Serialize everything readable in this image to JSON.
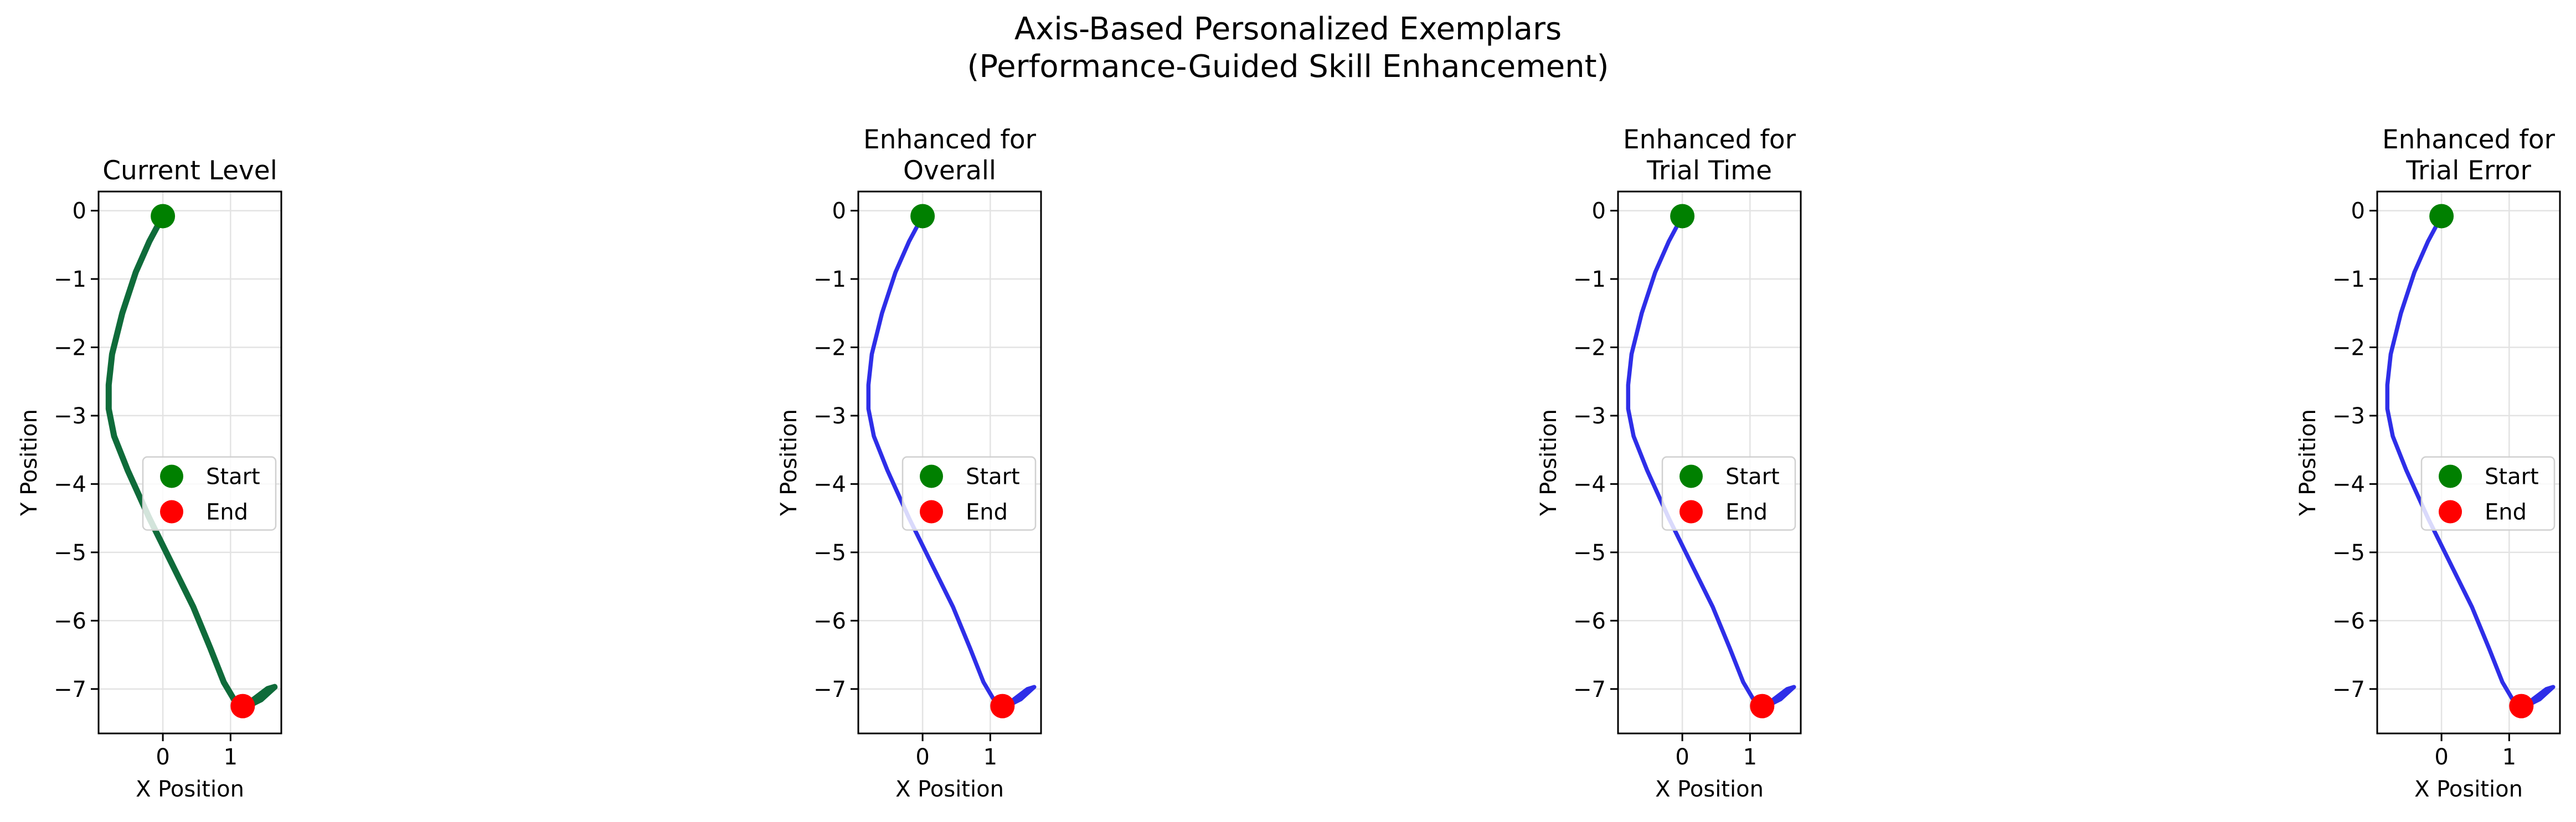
{
  "figure": {
    "title_line1": "Axis-Based Personalized Exemplars",
    "title_line2": "(Performance-Guided Skill Enhancement)"
  },
  "chart_data": [
    {
      "type": "line",
      "title_lines": [
        "Current Level"
      ],
      "xlabel": "X Position",
      "ylabel": "Y Position",
      "xlim": [
        -0.95,
        1.75
      ],
      "ylim": [
        -7.65,
        0.28
      ],
      "xticks": [
        0,
        1
      ],
      "yticks": [
        0,
        -1,
        -2,
        -3,
        -4,
        -5,
        -6,
        -7
      ],
      "grid": true,
      "line_color": "#0f6b3a",
      "legend": {
        "placement": "center-right",
        "entries": [
          "Start",
          "End"
        ]
      },
      "start_color": "#008000",
      "end_color": "#ff0000",
      "start": [
        0.0,
        -0.08
      ],
      "end": [
        1.18,
        -7.25
      ],
      "path": [
        [
          0.0,
          -0.08
        ],
        [
          -0.2,
          -0.45
        ],
        [
          -0.4,
          -0.9
        ],
        [
          -0.6,
          -1.5
        ],
        [
          -0.75,
          -2.1
        ],
        [
          -0.8,
          -2.55
        ],
        [
          -0.8,
          -2.9
        ],
        [
          -0.72,
          -3.3
        ],
        [
          -0.52,
          -3.8
        ],
        [
          -0.2,
          -4.5
        ],
        [
          0.15,
          -5.2
        ],
        [
          0.45,
          -5.8
        ],
        [
          0.7,
          -6.4
        ],
        [
          0.9,
          -6.9
        ],
        [
          1.05,
          -7.15
        ],
        [
          1.25,
          -7.25
        ],
        [
          1.45,
          -7.15
        ],
        [
          1.65,
          -6.97
        ],
        [
          1.55,
          -7.0
        ],
        [
          1.35,
          -7.15
        ],
        [
          1.2,
          -7.25
        ]
      ]
    },
    {
      "type": "line",
      "title_lines": [
        "Enhanced for",
        "Overall"
      ],
      "xlabel": "X Position",
      "ylabel": "Y Position",
      "xlim": [
        -0.95,
        1.75
      ],
      "ylim": [
        -7.65,
        0.28
      ],
      "xticks": [
        0,
        1
      ],
      "yticks": [
        0,
        -1,
        -2,
        -3,
        -4,
        -5,
        -6,
        -7
      ],
      "grid": true,
      "line_color": "#2e2ee8",
      "legend": {
        "placement": "center-right",
        "entries": [
          "Start",
          "End"
        ]
      },
      "start_color": "#008000",
      "end_color": "#ff0000",
      "start": [
        0.0,
        -0.08
      ],
      "end": [
        1.18,
        -7.25
      ],
      "path": [
        [
          0.0,
          -0.08
        ],
        [
          -0.2,
          -0.45
        ],
        [
          -0.4,
          -0.9
        ],
        [
          -0.6,
          -1.5
        ],
        [
          -0.75,
          -2.1
        ],
        [
          -0.8,
          -2.55
        ],
        [
          -0.8,
          -2.9
        ],
        [
          -0.72,
          -3.3
        ],
        [
          -0.52,
          -3.8
        ],
        [
          -0.2,
          -4.5
        ],
        [
          0.15,
          -5.2
        ],
        [
          0.45,
          -5.8
        ],
        [
          0.7,
          -6.4
        ],
        [
          0.9,
          -6.9
        ],
        [
          1.05,
          -7.15
        ],
        [
          1.25,
          -7.25
        ],
        [
          1.45,
          -7.15
        ],
        [
          1.65,
          -6.97
        ],
        [
          1.55,
          -7.0
        ],
        [
          1.35,
          -7.15
        ],
        [
          1.2,
          -7.25
        ]
      ]
    },
    {
      "type": "line",
      "title_lines": [
        "Enhanced for",
        "Trial Time"
      ],
      "xlabel": "X Position",
      "ylabel": "Y Position",
      "xlim": [
        -0.95,
        1.75
      ],
      "ylim": [
        -7.65,
        0.28
      ],
      "xticks": [
        0,
        1
      ],
      "yticks": [
        0,
        -1,
        -2,
        -3,
        -4,
        -5,
        -6,
        -7
      ],
      "grid": true,
      "line_color": "#2e2ee8",
      "legend": {
        "placement": "center-right",
        "entries": [
          "Start",
          "End"
        ]
      },
      "start_color": "#008000",
      "end_color": "#ff0000",
      "start": [
        0.0,
        -0.08
      ],
      "end": [
        1.18,
        -7.25
      ],
      "path": [
        [
          0.0,
          -0.08
        ],
        [
          -0.2,
          -0.45
        ],
        [
          -0.4,
          -0.9
        ],
        [
          -0.6,
          -1.5
        ],
        [
          -0.75,
          -2.1
        ],
        [
          -0.8,
          -2.55
        ],
        [
          -0.8,
          -2.9
        ],
        [
          -0.72,
          -3.3
        ],
        [
          -0.52,
          -3.8
        ],
        [
          -0.2,
          -4.5
        ],
        [
          0.15,
          -5.2
        ],
        [
          0.45,
          -5.8
        ],
        [
          0.7,
          -6.4
        ],
        [
          0.9,
          -6.9
        ],
        [
          1.05,
          -7.15
        ],
        [
          1.25,
          -7.25
        ],
        [
          1.45,
          -7.15
        ],
        [
          1.65,
          -6.97
        ],
        [
          1.55,
          -7.0
        ],
        [
          1.35,
          -7.15
        ],
        [
          1.2,
          -7.25
        ]
      ]
    },
    {
      "type": "line",
      "title_lines": [
        "Enhanced for",
        "Trial Error"
      ],
      "xlabel": "X Position",
      "ylabel": "Y Position",
      "xlim": [
        -0.95,
        1.75
      ],
      "ylim": [
        -7.65,
        0.28
      ],
      "xticks": [
        0,
        1
      ],
      "yticks": [
        0,
        -1,
        -2,
        -3,
        -4,
        -5,
        -6,
        -7
      ],
      "grid": true,
      "line_color": "#2e2ee8",
      "legend": {
        "placement": "center-right",
        "entries": [
          "Start",
          "End"
        ]
      },
      "start_color": "#008000",
      "end_color": "#ff0000",
      "start": [
        0.0,
        -0.08
      ],
      "end": [
        1.18,
        -7.25
      ],
      "path": [
        [
          0.0,
          -0.08
        ],
        [
          -0.2,
          -0.45
        ],
        [
          -0.4,
          -0.9
        ],
        [
          -0.6,
          -1.5
        ],
        [
          -0.75,
          -2.1
        ],
        [
          -0.8,
          -2.55
        ],
        [
          -0.8,
          -2.9
        ],
        [
          -0.72,
          -3.3
        ],
        [
          -0.52,
          -3.8
        ],
        [
          -0.2,
          -4.5
        ],
        [
          0.15,
          -5.2
        ],
        [
          0.45,
          -5.8
        ],
        [
          0.7,
          -6.4
        ],
        [
          0.9,
          -6.9
        ],
        [
          1.05,
          -7.15
        ],
        [
          1.25,
          -7.25
        ],
        [
          1.45,
          -7.15
        ],
        [
          1.65,
          -6.97
        ],
        [
          1.55,
          -7.0
        ],
        [
          1.35,
          -7.15
        ],
        [
          1.2,
          -7.25
        ]
      ]
    }
  ]
}
